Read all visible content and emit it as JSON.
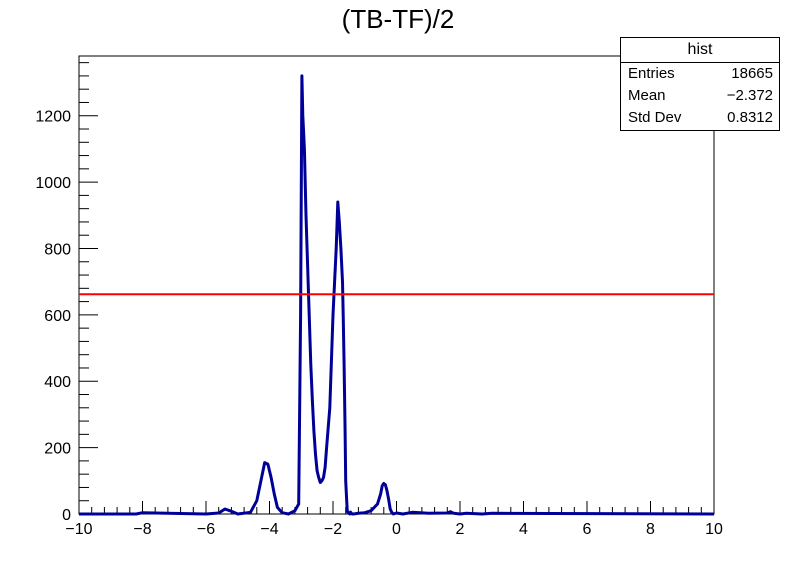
{
  "chart_data": {
    "type": "line",
    "title": "(TB-TF)/2",
    "xlim": [
      -10,
      10
    ],
    "ylim": [
      0,
      1380
    ],
    "x_ticks": [
      -10,
      -8,
      -6,
      -4,
      -2,
      0,
      2,
      4,
      6,
      8,
      10
    ],
    "y_ticks": [
      0,
      200,
      400,
      600,
      800,
      1000,
      1200
    ],
    "series": [
      {
        "color": "#000099",
        "x": [
          -10,
          -8.2,
          -8.0,
          -6.0,
          -5.6,
          -5.4,
          -5.2,
          -5.0,
          -4.6,
          -4.4,
          -4.25,
          -4.15,
          -4.05,
          -3.95,
          -3.85,
          -3.75,
          -3.6,
          -3.4,
          -3.2,
          -3.08,
          -3.02,
          -2.98,
          -2.95,
          -2.9,
          -2.85,
          -2.8,
          -2.75,
          -2.7,
          -2.65,
          -2.6,
          -2.55,
          -2.5,
          -2.45,
          -2.4,
          -2.35,
          -2.3,
          -2.25,
          -2.2,
          -2.1,
          -2.0,
          -1.95,
          -1.9,
          -1.85,
          -1.8,
          -1.75,
          -1.7,
          -1.68,
          -1.65,
          -1.62,
          -1.6,
          -1.57,
          -1.55,
          -1.52,
          -1.5,
          -1.47,
          -1.45,
          -1.4,
          -1.35,
          -1.3,
          -1.2,
          -1.0,
          -0.8,
          -0.6,
          -0.5,
          -0.45,
          -0.4,
          -0.35,
          -0.3,
          -0.25,
          -0.2,
          -0.15,
          -0.1,
          0.0,
          0.2,
          0.5,
          1.0,
          1.6,
          1.7,
          1.8,
          2.0,
          2.2,
          2.7,
          3.0,
          10
        ],
        "y": [
          0,
          0,
          4,
          0,
          3,
          15,
          8,
          0,
          5,
          40,
          110,
          155,
          150,
          110,
          60,
          20,
          4,
          0,
          10,
          30,
          600,
          1320,
          1200,
          1100,
          900,
          750,
          600,
          450,
          340,
          250,
          180,
          130,
          110,
          95,
          100,
          110,
          140,
          200,
          320,
          600,
          700,
          800,
          940,
          880,
          800,
          700,
          600,
          450,
          250,
          100,
          40,
          8,
          4,
          2,
          0,
          6,
          0,
          0,
          1,
          2,
          4,
          10,
          30,
          60,
          85,
          92,
          88,
          70,
          45,
          15,
          5,
          0,
          3,
          0,
          5,
          2,
          3,
          7,
          2,
          0,
          2,
          0,
          2,
          0
        ]
      },
      {
        "color": "#ff0000",
        "x": [
          -10,
          10
        ],
        "y": [
          662,
          662
        ]
      }
    ]
  },
  "stats": {
    "header": "hist",
    "rows": [
      {
        "label": "Entries",
        "value": "18665"
      },
      {
        "label": "Mean",
        "value": "−2.372"
      },
      {
        "label": "Std Dev",
        "value": "0.8312"
      }
    ]
  }
}
